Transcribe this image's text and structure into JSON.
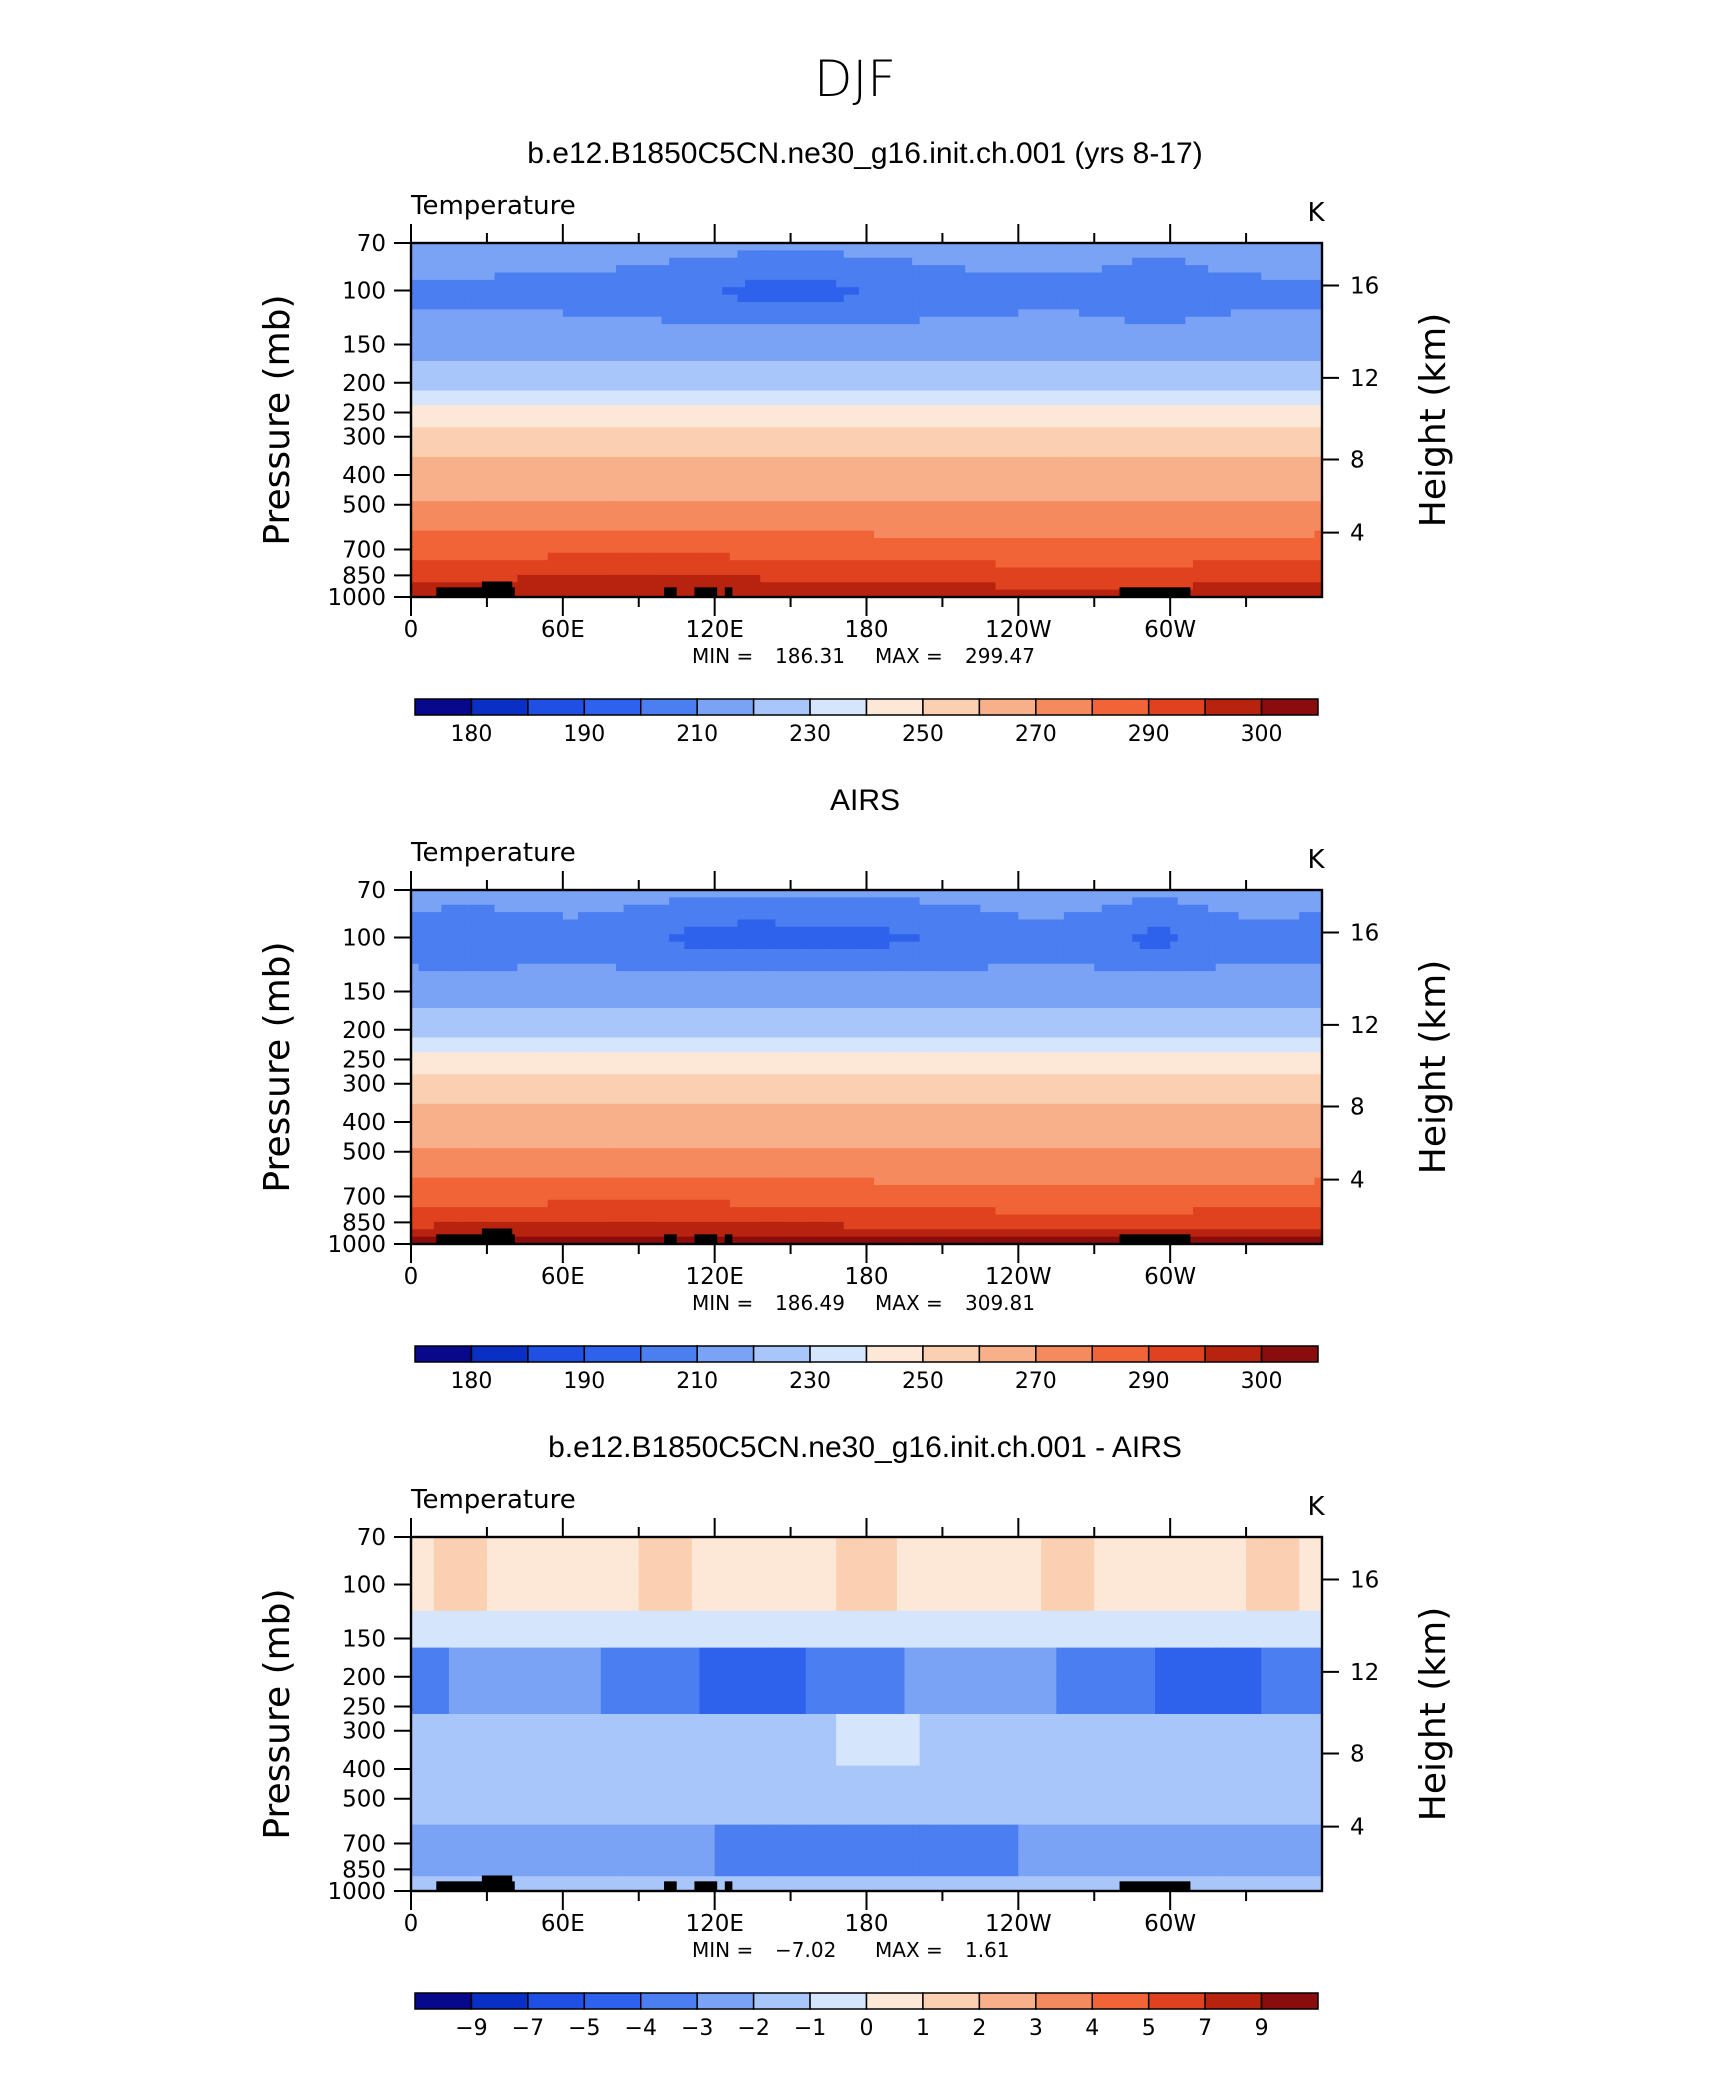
{
  "figure": {
    "title": "DJF"
  },
  "chart_data": [
    {
      "type": "heatmap",
      "title": "b.e12.B1850C5CN.ne30_g16.init.ch.001 (yrs 8-17)",
      "left_label": "Temperature",
      "right_label": "K",
      "ylabel": "Pressure  (mb)",
      "y2label": "Height  (km)",
      "x_ticks": [
        "0",
        "60E",
        "120E",
        "180",
        "120W",
        "60W"
      ],
      "y_ticks": [
        "70",
        "100",
        "150",
        "200",
        "250",
        "300",
        "400",
        "500",
        "700",
        "850",
        "1000"
      ],
      "y2_ticks": [
        "16",
        "12",
        "8",
        "4"
      ],
      "stats": {
        "min_label": "MIN  =",
        "min": "186.31",
        "max_label": "MAX  =",
        "max": "299.47"
      },
      "colorbar_labels": [
        "180",
        "190",
        "210",
        "230",
        "250",
        "270",
        "290",
        "300"
      ],
      "field": "model",
      "xlim": [
        0,
        360
      ],
      "ylim": [
        1000,
        70
      ],
      "y_scale": "log"
    },
    {
      "type": "heatmap",
      "title": "AIRS",
      "left_label": "Temperature",
      "right_label": "K",
      "ylabel": "Pressure  (mb)",
      "y2label": "Height  (km)",
      "x_ticks": [
        "0",
        "60E",
        "120E",
        "180",
        "120W",
        "60W"
      ],
      "y_ticks": [
        "70",
        "100",
        "150",
        "200",
        "250",
        "300",
        "400",
        "500",
        "700",
        "850",
        "1000"
      ],
      "y2_ticks": [
        "16",
        "12",
        "8",
        "4"
      ],
      "stats": {
        "min_label": "MIN  =",
        "min": "186.49",
        "max_label": "MAX  =",
        "max": "309.81"
      },
      "colorbar_labels": [
        "180",
        "190",
        "210",
        "230",
        "250",
        "270",
        "290",
        "300"
      ],
      "field": "obs",
      "xlim": [
        0,
        360
      ],
      "ylim": [
        1000,
        70
      ],
      "y_scale": "log"
    },
    {
      "type": "heatmap",
      "title": "b.e12.B1850C5CN.ne30_g16.init.ch.001 - AIRS",
      "left_label": "Temperature",
      "right_label": "K",
      "ylabel": "Pressure  (mb)",
      "y2label": "Height  (km)",
      "x_ticks": [
        "0",
        "60E",
        "120E",
        "180",
        "120W",
        "60W"
      ],
      "y_ticks": [
        "70",
        "100",
        "150",
        "200",
        "250",
        "300",
        "400",
        "500",
        "700",
        "850",
        "1000"
      ],
      "y2_ticks": [
        "16",
        "12",
        "8",
        "4"
      ],
      "stats": {
        "min_label": "MIN  =",
        "min": "−7.02",
        "max_label": "MAX  =",
        "max": "1.61"
      },
      "colorbar_labels": [
        "−9",
        "−7",
        "−5",
        "−4",
        "−3",
        "−2",
        "−1",
        "0",
        "1",
        "2",
        "3",
        "4",
        "5",
        "7",
        "9"
      ],
      "field": "diff",
      "xlim": [
        0,
        360
      ],
      "ylim": [
        1000,
        70
      ],
      "y_scale": "log"
    }
  ],
  "palette": [
    "#08088c",
    "#0a2fc4",
    "#1f4fe3",
    "#2e62ec",
    "#4b7ef0",
    "#7aa3f6",
    "#a9c6fb",
    "#d5e6fc",
    "#fde7d6",
    "#fbcfb2",
    "#f8b08a",
    "#f58a5e",
    "#f06438",
    "#e0421f",
    "#b8230f",
    "#8a0c0c"
  ]
}
